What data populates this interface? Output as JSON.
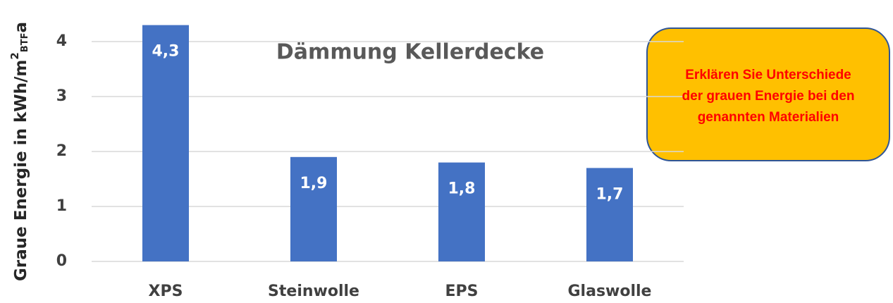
{
  "chart_data": {
    "type": "bar",
    "title": "Dämmung Kellerdecke",
    "y_label": {
      "main": "Graue Energie in kWh/m",
      "sup": "2",
      "sub": "BTF",
      "end": "a"
    },
    "categories": [
      "XPS",
      "Steinwolle",
      "EPS",
      "Glaswolle"
    ],
    "values": [
      4.3,
      1.9,
      1.8,
      1.7
    ],
    "value_labels": [
      "4,3",
      "1,9",
      "1,8",
      "1,7"
    ],
    "color": "#4472c4",
    "ylim": [
      0,
      4.5
    ],
    "yticks": [
      0,
      1,
      2,
      3,
      4
    ],
    "grid": true,
    "annotation": [
      "Erklären Sie Unterschiede",
      "der grauen Energie bei den",
      "genannten Materialien"
    ]
  }
}
